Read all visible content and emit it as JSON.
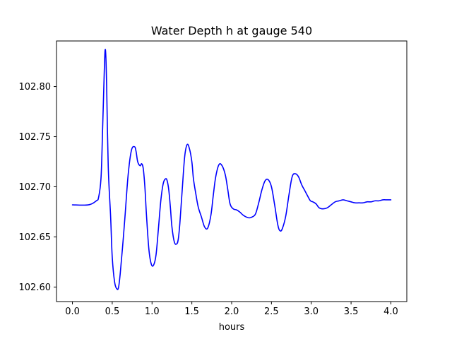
{
  "chart_data": {
    "type": "line",
    "title": "Water Depth h at gauge 540",
    "xlabel": "hours",
    "ylabel": "",
    "xlim": [
      -0.2,
      4.2
    ],
    "ylim": [
      102.5855,
      102.8455
    ],
    "grid": false,
    "x_ticks": [
      0.0,
      0.5,
      1.0,
      1.5,
      2.0,
      2.5,
      3.0,
      3.5,
      4.0
    ],
    "x_tick_labels": [
      "0.0",
      "0.5",
      "1.0",
      "1.5",
      "2.0",
      "2.5",
      "3.0",
      "3.5",
      "4.0"
    ],
    "y_ticks": [
      102.6,
      102.65,
      102.7,
      102.75,
      102.8
    ],
    "y_tick_labels": [
      "102.60",
      "102.65",
      "102.70",
      "102.75",
      "102.80"
    ],
    "series": [
      {
        "color": "#0000ff",
        "x": [
          0.0,
          0.2,
          0.3,
          0.33,
          0.36,
          0.38,
          0.4,
          0.41,
          0.42,
          0.43,
          0.45,
          0.48,
          0.5,
          0.53,
          0.56,
          0.58,
          0.6,
          0.63,
          0.66,
          0.7,
          0.74,
          0.78,
          0.8,
          0.82,
          0.85,
          0.87,
          0.89,
          0.91,
          0.93,
          0.96,
          0.99,
          1.02,
          1.05,
          1.08,
          1.11,
          1.14,
          1.17,
          1.19,
          1.21,
          1.23,
          1.25,
          1.28,
          1.31,
          1.33,
          1.35,
          1.38,
          1.41,
          1.44,
          1.47,
          1.5,
          1.52,
          1.55,
          1.58,
          1.62,
          1.66,
          1.7,
          1.74,
          1.77,
          1.8,
          1.84,
          1.88,
          1.92,
          1.95,
          1.98,
          2.02,
          2.06,
          2.1,
          2.14,
          2.18,
          2.22,
          2.26,
          2.3,
          2.34,
          2.38,
          2.42,
          2.46,
          2.5,
          2.54,
          2.58,
          2.61,
          2.64,
          2.68,
          2.72,
          2.76,
          2.8,
          2.84,
          2.88,
          2.92,
          2.96,
          2.99,
          3.02,
          3.06,
          3.1,
          3.15,
          3.2,
          3.25,
          3.3,
          3.35,
          3.4,
          3.45,
          3.5,
          3.55,
          3.6,
          3.65,
          3.7,
          3.75,
          3.8,
          3.85,
          3.9,
          3.95,
          4.0
        ],
        "y": [
          102.682,
          102.682,
          102.686,
          102.69,
          102.71,
          102.76,
          102.815,
          102.836,
          102.83,
          102.8,
          102.72,
          102.67,
          102.63,
          102.605,
          102.598,
          102.6,
          102.613,
          102.64,
          102.67,
          102.712,
          102.736,
          102.74,
          102.735,
          102.725,
          102.721,
          102.723,
          102.718,
          102.7,
          102.672,
          102.638,
          102.623,
          102.622,
          102.632,
          102.658,
          102.686,
          102.703,
          102.708,
          102.706,
          102.697,
          102.68,
          102.66,
          102.645,
          102.643,
          102.648,
          102.664,
          102.698,
          102.73,
          102.742,
          102.738,
          102.725,
          102.708,
          102.693,
          102.68,
          102.67,
          102.66,
          102.659,
          102.672,
          102.692,
          102.71,
          102.722,
          102.721,
          102.712,
          102.698,
          102.683,
          102.678,
          102.677,
          102.675,
          102.672,
          102.67,
          102.669,
          102.67,
          102.673,
          102.684,
          102.697,
          102.706,
          102.707,
          102.7,
          102.682,
          102.662,
          102.656,
          102.659,
          102.671,
          102.692,
          102.71,
          102.713,
          102.71,
          102.702,
          102.696,
          102.69,
          102.686,
          102.685,
          102.683,
          102.679,
          102.678,
          102.679,
          102.682,
          102.685,
          102.686,
          102.687,
          102.686,
          102.685,
          102.684,
          102.684,
          102.684,
          102.685,
          102.685,
          102.686,
          102.686,
          102.687,
          102.687,
          102.687
        ]
      }
    ]
  }
}
